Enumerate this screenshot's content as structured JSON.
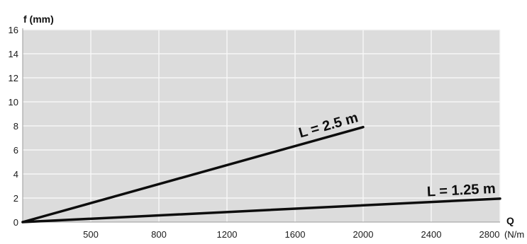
{
  "chart_data": {
    "type": "line",
    "ylabel": "f (mm)",
    "xlabel": "Q",
    "xunit": "(N/m",
    "xlim": [
      0,
      2800
    ],
    "ylim": [
      0,
      16
    ],
    "x_ticks": [
      "500",
      "800",
      "1200",
      "1600",
      "2000",
      "2400",
      "2800"
    ],
    "y_ticks": [
      "0",
      "2",
      "4",
      "6",
      "8",
      "10",
      "12",
      "14",
      "16"
    ],
    "grid": true,
    "colors": {
      "plot_bg": "#dcdcdc",
      "grid": "#f7f7f7",
      "line": "#0d0d0d"
    },
    "series": [
      {
        "name": "L = 2.5 m",
        "x": [
          0,
          2000
        ],
        "y": [
          0,
          7.9
        ]
      },
      {
        "name": "L = 1.25 m",
        "x": [
          0,
          2800
        ],
        "y": [
          0,
          1.95
        ]
      }
    ]
  }
}
